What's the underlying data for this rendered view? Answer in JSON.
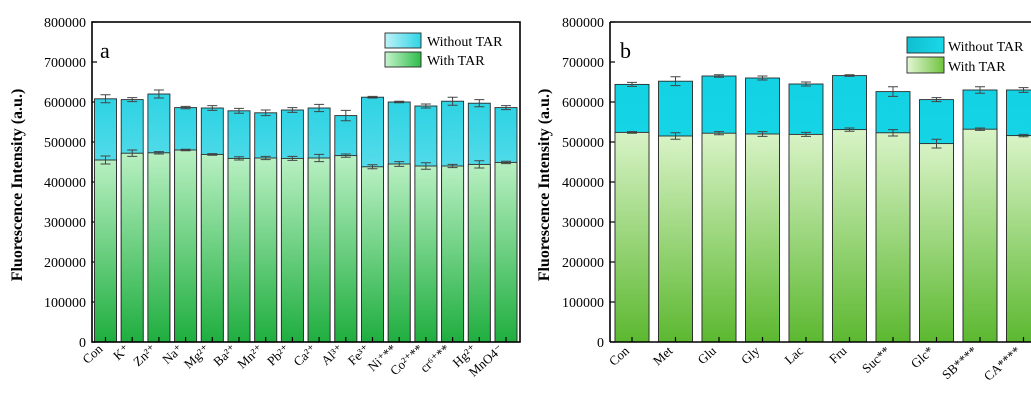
{
  "chart_data": [
    {
      "type": "bar",
      "panel": "a",
      "ylabel": "Fluorescence Intensity (a.u.)",
      "ylim": [
        0,
        800000
      ],
      "yticks": [
        "0",
        "100000",
        "200000",
        "300000",
        "400000",
        "500000",
        "600000",
        "700000",
        "800000"
      ],
      "categories": [
        "Con",
        "K⁺",
        "Zn²⁺",
        "Na⁺",
        "Mg²⁺",
        "Ba²⁺",
        "Mn²⁺",
        "Pb²⁺",
        "Ca²⁺",
        "Al³⁺",
        "Fe³⁺",
        "Ni⁺**",
        "Co²⁺**",
        "cr⁶⁺**",
        "Hg²⁺",
        "MnO4⁻"
      ],
      "legend_position": "top-right",
      "overlay": true,
      "series": [
        {
          "name": "Without TAR",
          "color": "#2fd4e6",
          "values": [
            608000,
            606000,
            620000,
            586000,
            585000,
            578000,
            573000,
            580000,
            585000,
            566000,
            612000,
            600000,
            590000,
            602000,
            597000,
            586000
          ],
          "errors": [
            10000,
            5000,
            10000,
            3000,
            6000,
            6000,
            7000,
            6000,
            9000,
            13000,
            2000,
            2000,
            5000,
            10000,
            9000,
            5000
          ]
        },
        {
          "name": "With TAR",
          "color": "#2dbd4a",
          "values": [
            455000,
            472000,
            473000,
            480000,
            469000,
            459000,
            460000,
            459000,
            460000,
            466000,
            438000,
            445000,
            440000,
            440000,
            444000,
            449000
          ],
          "errors": [
            10000,
            8000,
            3000,
            2000,
            2000,
            4000,
            4000,
            5000,
            9000,
            4000,
            5000,
            6000,
            8000,
            4000,
            9000,
            3000
          ]
        }
      ]
    },
    {
      "type": "bar",
      "panel": "b",
      "ylabel": "Fluorescence Intensity (a.u.)",
      "ylim": [
        0,
        800000
      ],
      "yticks": [
        "0",
        "100000",
        "200000",
        "300000",
        "400000",
        "500000",
        "600000",
        "700000",
        "800000"
      ],
      "categories": [
        "Con",
        "Met",
        "Glu",
        "Gly",
        "Lac",
        "Fru",
        "Suc**",
        "Glc*",
        "SB****",
        "CA****"
      ],
      "legend_position": "top-right",
      "overlay": true,
      "series": [
        {
          "name": "Without TAR",
          "color": "#1ad8e8",
          "values": [
            644000,
            652000,
            665000,
            660000,
            645000,
            666000,
            626000,
            606000,
            630000,
            630000
          ],
          "errors": [
            5000,
            11000,
            3000,
            5000,
            5000,
            2000,
            12000,
            5000,
            8000,
            6000
          ]
        },
        {
          "name": "With TAR",
          "color": "#6fc43e",
          "values": [
            524000,
            515000,
            522000,
            520000,
            519000,
            531000,
            523000,
            496000,
            532000,
            516000
          ],
          "errors": [
            2000,
            8000,
            4000,
            6000,
            5000,
            4000,
            8000,
            11000,
            3000,
            3000
          ]
        }
      ]
    }
  ]
}
